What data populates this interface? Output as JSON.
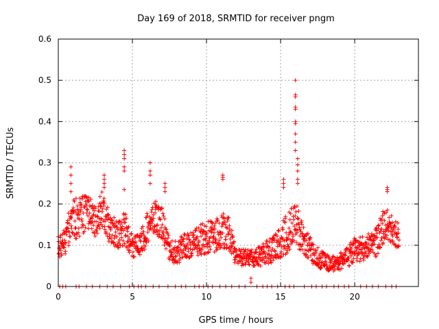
{
  "chart_data": {
    "type": "scatter",
    "title": "Day 169 of 2018, SRMTID for receiver pngm",
    "xlabel": "GPS time / hours",
    "ylabel": "SRMTID / TECUs",
    "xlim": [
      0,
      24.3
    ],
    "ylim": [
      0,
      0.6
    ],
    "x_ticks": [
      0,
      5,
      10,
      15,
      20
    ],
    "x_tick_labels": [
      "0",
      "5",
      "10",
      "15",
      "20"
    ],
    "y_ticks": [
      0,
      0.1,
      0.2,
      0.3,
      0.4,
      0.5,
      0.6
    ],
    "y_tick_labels": [
      "0",
      "0.1",
      "0.2",
      "0.3",
      "0.4",
      "0.5",
      "0.6"
    ],
    "grid": true,
    "marker": "plus",
    "series": [
      {
        "name": "SRMTID",
        "color": "#ff0000",
        "trend": {
          "x": [
            0,
            0.5,
            1,
            1.5,
            2,
            2.5,
            3,
            3.5,
            4,
            4.5,
            5,
            5.5,
            6,
            6.5,
            7,
            7.5,
            8,
            8.5,
            9,
            9.5,
            10,
            10.5,
            11,
            11.5,
            12,
            12.5,
            13,
            13.5,
            14,
            14.5,
            15,
            15.5,
            16,
            16.5,
            17,
            17.5,
            18,
            18.5,
            19,
            19.5,
            20,
            20.5,
            21,
            21.5,
            22,
            22.5,
            23
          ],
          "y": [
            0.1,
            0.12,
            0.16,
            0.17,
            0.18,
            0.16,
            0.19,
            0.14,
            0.13,
            0.14,
            0.1,
            0.1,
            0.14,
            0.17,
            0.15,
            0.09,
            0.08,
            0.1,
            0.1,
            0.11,
            0.12,
            0.12,
            0.14,
            0.13,
            0.07,
            0.07,
            0.07,
            0.07,
            0.08,
            0.09,
            0.11,
            0.13,
            0.16,
            0.11,
            0.09,
            0.07,
            0.06,
            0.055,
            0.06,
            0.07,
            0.09,
            0.09,
            0.1,
            0.11,
            0.15,
            0.14,
            0.12
          ],
          "spread": [
            0.03,
            0.04,
            0.05,
            0.05,
            0.04,
            0.04,
            0.05,
            0.04,
            0.04,
            0.04,
            0.03,
            0.03,
            0.04,
            0.04,
            0.04,
            0.03,
            0.03,
            0.03,
            0.03,
            0.04,
            0.04,
            0.04,
            0.05,
            0.04,
            0.02,
            0.02,
            0.02,
            0.025,
            0.03,
            0.03,
            0.04,
            0.05,
            0.05,
            0.04,
            0.03,
            0.025,
            0.02,
            0.02,
            0.02,
            0.025,
            0.03,
            0.03,
            0.03,
            0.04,
            0.04,
            0.04,
            0.03
          ]
        },
        "spikes": [
          {
            "x": 0.85,
            "y": [
              0.29,
              0.27,
              0.25,
              0.23
            ]
          },
          {
            "x": 3.1,
            "y": [
              0.27,
              0.26,
              0.25,
              0.24
            ]
          },
          {
            "x": 4.45,
            "y": [
              0.33,
              0.32,
              0.31,
              0.29,
              0.28,
              0.235
            ]
          },
          {
            "x": 6.2,
            "y": [
              0.3,
              0.28,
              0.27,
              0.25
            ]
          },
          {
            "x": 7.2,
            "y": [
              0.25,
              0.24,
              0.23
            ]
          },
          {
            "x": 11.1,
            "y": [
              0.27,
              0.265,
              0.26
            ]
          },
          {
            "x": 15.2,
            "y": [
              0.26,
              0.25,
              0.24
            ]
          },
          {
            "x": 16.0,
            "y": [
              0.5,
              0.465,
              0.46,
              0.435,
              0.43,
              0.4,
              0.395,
              0.37,
              0.35,
              0.33
            ]
          },
          {
            "x": 16.15,
            "y": [
              0.31,
              0.295,
              0.28,
              0.26,
              0.25
            ]
          },
          {
            "x": 22.2,
            "y": [
              0.24,
              0.235,
              0.23
            ]
          },
          {
            "x": 13.0,
            "y": [
              0.02,
              0.01
            ]
          }
        ],
        "zero_points_x": [
          0.1,
          0.3,
          0.5,
          1.2,
          1.4,
          1.9,
          2.3,
          2.8,
          3.3,
          3.7,
          4.2,
          4.8,
          5.1,
          5.4,
          5.6,
          5.9,
          6.4,
          6.8,
          7.4,
          7.9,
          8.3,
          8.6,
          9.2,
          9.5,
          9.8,
          10.1,
          10.4,
          10.9,
          11.3,
          11.7,
          12.2,
          12.6,
          13.4,
          13.8,
          14.1,
          14.4,
          14.8,
          15.3,
          15.6,
          15.9,
          16.6,
          17.1,
          17.4,
          17.8,
          18.1,
          18.6,
          18.9,
          19.3,
          19.6,
          20.4,
          20.8,
          21.2,
          21.6,
          22.1,
          22.5,
          22.8
        ]
      }
    ]
  }
}
